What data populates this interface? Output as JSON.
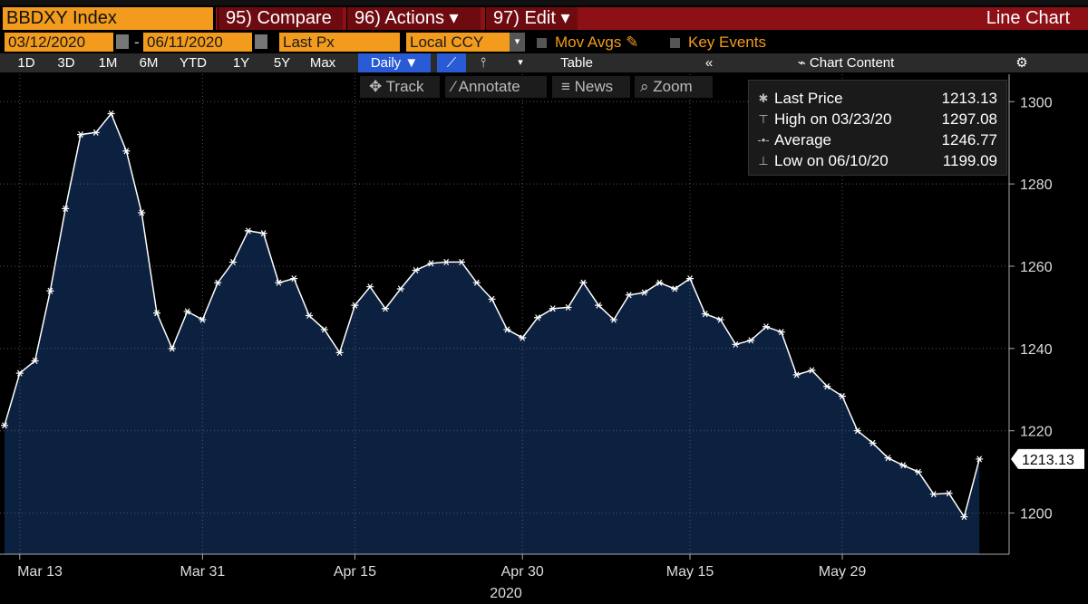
{
  "header": {
    "security": "BBDXY Index",
    "buttons": [
      "95) Compare",
      "96) Actions",
      "97) Edit"
    ],
    "view": "Line Chart"
  },
  "controls": {
    "start_date": "03/12/2020",
    "end_date": "06/11/2020",
    "field": "Last Px",
    "currency": "Local CCY",
    "options": [
      "Mov Avgs",
      "Key Events"
    ]
  },
  "toolbar": {
    "ranges": [
      "1D",
      "3D",
      "1M",
      "6M",
      "YTD",
      "1Y",
      "5Y",
      "Max"
    ],
    "frequency": "Daily",
    "table": "Table",
    "chart_content": "Chart Content"
  },
  "tools": [
    "Track",
    "Annotate",
    "News",
    "Zoom"
  ],
  "chart_data": {
    "type": "line",
    "x": [
      "2020-03-12",
      "2020-03-13",
      "2020-03-16",
      "2020-03-17",
      "2020-03-18",
      "2020-03-19",
      "2020-03-20",
      "2020-03-23",
      "2020-03-24",
      "2020-03-25",
      "2020-03-26",
      "2020-03-27",
      "2020-03-30",
      "2020-03-31",
      "2020-04-01",
      "2020-04-02",
      "2020-04-03",
      "2020-04-06",
      "2020-04-07",
      "2020-04-08",
      "2020-04-09",
      "2020-04-13",
      "2020-04-14",
      "2020-04-15",
      "2020-04-16",
      "2020-04-17",
      "2020-04-20",
      "2020-04-21",
      "2020-04-22",
      "2020-04-23",
      "2020-04-24",
      "2020-04-27",
      "2020-04-28",
      "2020-04-29",
      "2020-04-30",
      "2020-05-01",
      "2020-05-04",
      "2020-05-05",
      "2020-05-06",
      "2020-05-07",
      "2020-05-08",
      "2020-05-11",
      "2020-05-12",
      "2020-05-13",
      "2020-05-14",
      "2020-05-15",
      "2020-05-18",
      "2020-05-19",
      "2020-05-20",
      "2020-05-21",
      "2020-05-22",
      "2020-05-25",
      "2020-05-26",
      "2020-05-27",
      "2020-05-28",
      "2020-05-29",
      "2020-06-01",
      "2020-06-02",
      "2020-06-03",
      "2020-06-04",
      "2020-06-05",
      "2020-06-08",
      "2020-06-09",
      "2020-06-10",
      "2020-06-11"
    ],
    "series": [
      {
        "name": "Last Price",
        "color": "#ffffff",
        "values": [
          1221.3,
          1234,
          1237,
          1254,
          1274,
          1292,
          1292.5,
          1297.08,
          1288,
          1273,
          1248.6,
          1240,
          1249,
          1247,
          1256,
          1261,
          1268.6,
          1268,
          1256,
          1257,
          1248,
          1244.6,
          1239,
          1250.5,
          1255,
          1249.7,
          1254.5,
          1259,
          1260.7,
          1261,
          1261,
          1256,
          1252,
          1244.6,
          1242.6,
          1247.5,
          1249.7,
          1250,
          1256,
          1250.5,
          1247,
          1253,
          1253.6,
          1256,
          1254.5,
          1257,
          1248.4,
          1247,
          1241,
          1242,
          1245.3,
          1244,
          1233.6,
          1234.7,
          1230.8,
          1228.4,
          1220,
          1217,
          1213.4,
          1211.6,
          1210,
          1204.6,
          1204.8,
          1199.09,
          1213.13
        ]
      }
    ],
    "fill_color": "#0c2140",
    "ylim": [
      1190,
      1306
    ],
    "yticks": [
      1200,
      1220,
      1240,
      1260,
      1280,
      1300
    ],
    "xticks": [
      {
        "value": "2020-03-13",
        "label": "Mar 13"
      },
      {
        "value": "2020-03-31",
        "label": "Mar 31"
      },
      {
        "value": "2020-04-15",
        "label": "Apr 15"
      },
      {
        "value": "2020-04-30",
        "label": "Apr 30"
      },
      {
        "value": "2020-05-15",
        "label": "May 15"
      },
      {
        "value": "2020-05-29",
        "label": "May 29"
      }
    ],
    "x_label": "2020",
    "grid": true,
    "legend": {
      "entries": [
        "Last Price",
        "High on 03/23/20",
        "Average",
        "Low on 06/10/20"
      ],
      "values": [
        1213.13,
        1297.08,
        1246.77,
        1199.09
      ]
    }
  }
}
